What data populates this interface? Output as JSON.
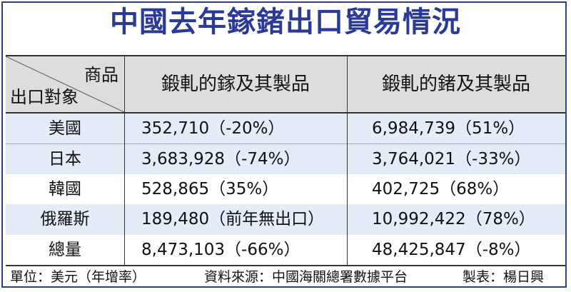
{
  "title": "中國去年鎵鍺出口貿易情況",
  "header": {
    "corner_top": "商品",
    "corner_bottom": "出口對象",
    "col1": "鍛軋的鎵及其製品",
    "col2": "鍛軋的鍺及其製品"
  },
  "rows": [
    {
      "label": "美國",
      "gallium": "352,710（-20%）",
      "germanium": "6,984,739（51%）"
    },
    {
      "label": "日本",
      "gallium": "3,683,928（-74%）",
      "germanium": "3,764,021（-33%）"
    },
    {
      "label": "韓國",
      "gallium": "528,865（35%）",
      "germanium": "402,725（68%）"
    },
    {
      "label": "俄羅斯",
      "gallium": "189,480（前年無出口）",
      "germanium": "10,992,422（78%）"
    },
    {
      "label": "總量",
      "gallium": "8,473,103（-66%）",
      "germanium": "48,425,847（-8%）"
    }
  ],
  "footer": {
    "unit": "單位：美元（年增率）",
    "source": "資料來源：中國海關總署數據平台",
    "credit": "製表：楊日興"
  },
  "chart_data": {
    "type": "table",
    "title": "中國去年鎵鍺出口貿易情況",
    "columns": [
      "商品 / 出口對象",
      "鍛軋的鎵及其製品",
      "鍛軋的鍺及其製品"
    ],
    "rows": [
      [
        "美國",
        "352,710（-20%）",
        "6,984,739（51%）"
      ],
      [
        "日本",
        "3,683,928（-74%）",
        "3,764,021（-33%）"
      ],
      [
        "韓國",
        "528,865（35%）",
        "402,725（68%）"
      ],
      [
        "俄羅斯",
        "189,480（前年無出口）",
        "10,992,422（78%）"
      ],
      [
        "總量",
        "8,473,103（-66%）",
        "48,425,847（-8%）"
      ]
    ]
  },
  "colors": {
    "title": "#2a3a96",
    "header_bg": "#dddddd",
    "row_blue": "#e3ecf7"
  }
}
